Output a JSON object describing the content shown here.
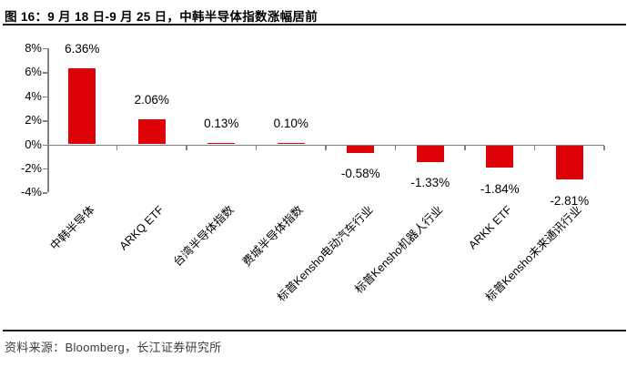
{
  "header": {
    "title": "图 16：9 月 18 日-9 月 25 日，中韩半导体指数涨幅居前"
  },
  "footer": {
    "source": "资料来源：Bloomberg，长江证券研究所"
  },
  "colors": {
    "bar": "#df0209",
    "axis": "#808080",
    "rule": "#1a1a1a",
    "label_text": "#000000"
  },
  "chart_data": {
    "type": "bar",
    "title": "9月18日-9月25日，中韩半导体指数涨幅居前",
    "categories": [
      "中韩半导体",
      "ARKQ ETF",
      "台湾半导体指数",
      "费城半导体指数",
      "标普Kensho电动汽车行业",
      "标普Kensho机器人行业",
      "ARKK ETF",
      "标普Kensho未来通讯行业"
    ],
    "values": [
      6.36,
      2.06,
      0.13,
      0.1,
      -0.58,
      -1.33,
      -1.84,
      -2.81
    ],
    "data_labels": [
      "6.36%",
      "2.06%",
      "0.13%",
      "0.10%",
      "-0.58%",
      "-1.33%",
      "-1.84%",
      "-2.81%"
    ],
    "xlabel": "",
    "ylabel": "",
    "y_ticks": [
      "8%",
      "6%",
      "4%",
      "2%",
      "0%",
      "-2%",
      "-4%"
    ],
    "y_tick_values": [
      8,
      6,
      4,
      2,
      0,
      -2,
      -4
    ],
    "ylim": [
      -4,
      8
    ],
    "grid": false,
    "legend": null,
    "bar_color": "#df0209",
    "axis_color": "#808080"
  }
}
